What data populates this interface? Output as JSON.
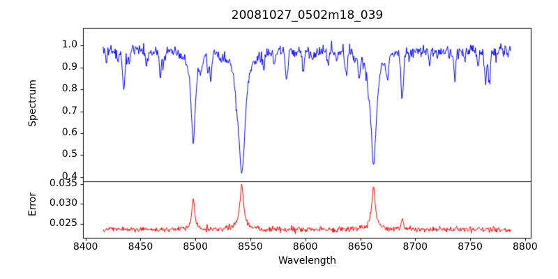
{
  "figure": {
    "title": "20081027_0502m18_039",
    "background": "#ffffff",
    "text_color": "#000000",
    "axis_color": "#000000"
  },
  "chart_data": [
    {
      "type": "line",
      "name": "spectrum-panel",
      "title": "20081027_0502m18_039",
      "ylabel": "Spectrum",
      "legend": "none",
      "grid": false,
      "line_color": "#0000ff",
      "xlim": [
        8398,
        8805.5
      ],
      "ylim": [
        0.379,
        1.079
      ],
      "yticks": [
        {
          "v": 0.4,
          "label": "0.4"
        },
        {
          "v": 0.5,
          "label": "0.5"
        },
        {
          "v": 0.6,
          "label": "0.6"
        },
        {
          "v": 0.7,
          "label": "0.7"
        },
        {
          "v": 0.8,
          "label": "0.8"
        },
        {
          "v": 0.9,
          "label": "0.9"
        },
        {
          "v": 1.0,
          "label": "1.0"
        }
      ],
      "x_start": 8416,
      "x_end": 8787,
      "x_step": 0.55,
      "continuum": 0.978,
      "noise_sigma": 0.014,
      "noise_seed": 77,
      "major_lines": [
        {
          "center": 8498.0,
          "depth": 0.4,
          "gamma": 2.6,
          "profile": "lorentz",
          "min_flux": 0.57
        },
        {
          "center": 8542.1,
          "depth": 0.57,
          "gamma": 3.6,
          "profile": "lorentz",
          "min_flux": 0.41
        },
        {
          "center": 8662.1,
          "depth": 0.535,
          "gamma": 3.1,
          "profile": "lorentz",
          "min_flux": 0.44
        },
        {
          "center": 8688.2,
          "depth": 0.2,
          "gamma": 1.2,
          "profile": "gauss",
          "min_flux": 0.78
        }
      ],
      "minor_lines": [
        {
          "center": 8419,
          "depth": 0.055,
          "sigma": 0.8
        },
        {
          "center": 8435,
          "depth": 0.13,
          "sigma": 1.0
        },
        {
          "center": 8468,
          "depth": 0.08,
          "sigma": 0.9
        },
        {
          "center": 8514,
          "depth": 0.1,
          "sigma": 1.0
        },
        {
          "center": 8583,
          "depth": 0.08,
          "sigma": 0.9
        },
        {
          "center": 8598,
          "depth": 0.07,
          "sigma": 0.8
        },
        {
          "center": 8621,
          "depth": 0.07,
          "sigma": 0.9
        },
        {
          "center": 8649,
          "depth": 0.1,
          "sigma": 0.9
        },
        {
          "center": 8675,
          "depth": 0.09,
          "sigma": 0.8
        },
        {
          "center": 8713,
          "depth": 0.07,
          "sigma": 0.8
        },
        {
          "center": 8736,
          "depth": 0.13,
          "sigma": 1.0
        },
        {
          "center": 8757,
          "depth": 0.08,
          "sigma": 0.9
        },
        {
          "center": 8764,
          "depth": 0.14,
          "sigma": 0.9
        }
      ],
      "random_weak_lines": {
        "count": 42,
        "seed": 12,
        "depth_min": 0.015,
        "depth_max": 0.085,
        "sigma_min": 0.5,
        "sigma_max": 1.3
      }
    },
    {
      "type": "line",
      "name": "error-panel",
      "ylabel": "Error",
      "xlabel": "Wavelength",
      "legend": "none",
      "grid": false,
      "line_color": "#ff0000",
      "xlim": [
        8398,
        8805.5
      ],
      "ylim": [
        0.0213,
        0.0356
      ],
      "yticks": [
        {
          "v": 0.025,
          "label": "0.025"
        },
        {
          "v": 0.03,
          "label": "0.030"
        },
        {
          "v": 0.035,
          "label": "0.035"
        }
      ],
      "xticks": [
        {
          "v": 8400,
          "label": "8400"
        },
        {
          "v": 8450,
          "label": "8450"
        },
        {
          "v": 8500,
          "label": "8500"
        },
        {
          "v": 8550,
          "label": "8550"
        },
        {
          "v": 8600,
          "label": "8600"
        },
        {
          "v": 8650,
          "label": "8650"
        },
        {
          "v": 8700,
          "label": "8700"
        },
        {
          "v": 8750,
          "label": "8750"
        },
        {
          "v": 8800,
          "label": "8800"
        }
      ],
      "baseline": 0.0235,
      "noise_sigma": 0.00035,
      "noise_seed": 5,
      "peaks": [
        {
          "center": 8498.0,
          "height": 0.0076,
          "gamma": 1.6,
          "peak_value": 0.0313
        },
        {
          "center": 8542.1,
          "height": 0.0114,
          "gamma": 2.2,
          "peak_value": 0.035
        },
        {
          "center": 8662.1,
          "height": 0.0106,
          "gamma": 2.0,
          "peak_value": 0.0342
        },
        {
          "center": 8688.2,
          "height": 0.0029,
          "gamma": 1.0,
          "peak_value": 0.0265
        }
      ]
    }
  ]
}
